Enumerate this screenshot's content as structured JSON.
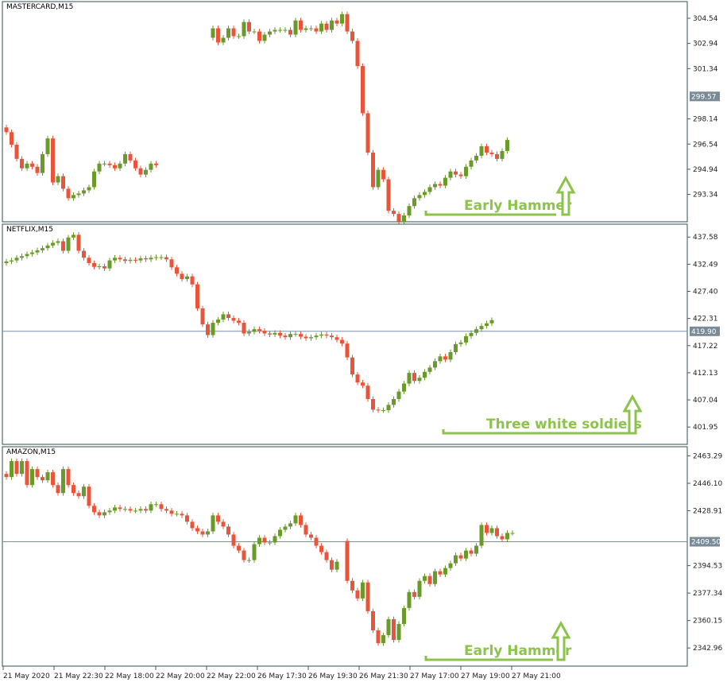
{
  "colors": {
    "bull": "#6a9a2a",
    "bear": "#e8553a",
    "annotation": "#8cc34a",
    "frame": "#2f4f4f",
    "price_line": "#7b8ea8",
    "price_box": "#7a8a96"
  },
  "time_axis": {
    "labels": [
      "21 May 2020",
      "21 May 22:30",
      "22 May 18:00",
      "22 May 20:00",
      "22 May 22:00",
      "26 May 17:30",
      "26 May 19:30",
      "26 May 21:30",
      "27 May 17:00",
      "27 May 19:00",
      "27 May 21:00"
    ]
  },
  "chart_data": [
    {
      "type": "candlestick",
      "title": "MASTERCARD,M15",
      "ylim": [
        291.6,
        305.6
      ],
      "yticks": [
        "304.54",
        "302.94",
        "301.34",
        "299.57",
        "298.14",
        "296.54",
        "294.94",
        "293.34"
      ],
      "current_price": "299.57",
      "show_price_line": false,
      "annotation": {
        "text": "Early Hammer"
      },
      "segments": [
        {
          "start": 0,
          "open": 297.6,
          "moves": [
            -0.3,
            -0.8,
            -0.9,
            -0.6,
            0.3,
            -0.2,
            -0.4,
            1.2,
            1.0,
            -2.8,
            0.4,
            -0.8,
            -0.6,
            0.2,
            0.1,
            0.2,
            0.2,
            1.0,
            0.5,
            0.0,
            -0.1,
            -0.2,
            0.3,
            0.6,
            -0.4,
            -0.5,
            -0.4,
            0.3,
            0.4,
            -0.1
          ]
        },
        {
          "start": 40,
          "open": 303.3,
          "moves": [
            0.6,
            -0.9,
            0.3,
            0.6,
            -0.5,
            0.0,
            0.9,
            -0.6,
            0.0,
            -0.6,
            0.4,
            0.2,
            0.1,
            0.0,
            0.0,
            -0.3,
            0.9,
            -0.6,
            0.1,
            0.0,
            -0.2,
            0.5,
            -0.4,
            0.6,
            -0.2,
            0.6,
            -1.1,
            -0.6,
            -1.6,
            -3.0,
            -2.5,
            -2.2,
            1.1,
            -0.6,
            -2.0,
            -0.2,
            -0.5,
            0.4,
            0.6,
            0.5,
            0.2,
            0.2,
            0.3,
            0.2,
            -0.1,
            0.5,
            0.4,
            -0.2,
            -0.1,
            0.6,
            0.4,
            0.3,
            0.6,
            -0.4,
            -0.1,
            -0.3,
            0.5,
            0.7
          ]
        }
      ]
    },
    {
      "type": "candlestick",
      "title": "NETFLIX,M15",
      "ylim": [
        398.7,
        440.0
      ],
      "yticks": [
        "437.58",
        "432.49",
        "427.40",
        "422.31",
        "419.90",
        "417.22",
        "412.13",
        "407.04",
        "401.95"
      ],
      "current_price": "419.90",
      "show_price_line": true,
      "annotation": {
        "text": "Three white soldiers"
      },
      "segments": [
        {
          "start": 0,
          "open": 432.7,
          "moves": [
            0.3,
            0.2,
            0.5,
            0.3,
            0.4,
            0.3,
            0.4,
            0.4,
            0.5,
            0.5,
            0.3,
            -1.8,
            2.5,
            0.5,
            -3.0,
            -1.3,
            -1.0,
            -0.7,
            0.1,
            -0.4,
            1.5,
            0.5,
            -0.3,
            -0.3,
            0.2,
            -0.1,
            0.4,
            -0.2,
            0.3,
            0.1,
            0.0,
            -0.4,
            -1.5,
            -1.2,
            -1.0,
            0.5,
            -1.5,
            -4.5,
            -3.0,
            -2.0,
            2.3,
            0.6,
            1.0,
            -0.7,
            -0.5,
            -0.4,
            -2.0,
            0.3,
            0.5,
            -0.3,
            -0.5,
            -0.2,
            0.3,
            -0.5,
            -0.3,
            0.6,
            0.0,
            -0.5,
            -0.3,
            0.2,
            0.3,
            0.2,
            -0.2,
            -0.3,
            -0.5,
            -0.7,
            -2.6,
            -3.2,
            -1.5,
            -0.6,
            -2.5,
            -2.0,
            -0.1,
            0.0,
            1.0,
            1.1,
            1.4,
            1.5,
            2.0,
            -1.5,
            0.6,
            1.1,
            0.8,
            1.2,
            0.9,
            -0.6,
            1.4,
            1.5,
            0.3,
            1.2,
            0.6,
            0.7,
            0.6,
            0.5,
            0.6
          ]
        }
      ]
    },
    {
      "type": "candlestick",
      "title": "AMAZON,M15",
      "ylim": [
        2331.6,
        2469.0
      ],
      "yticks": [
        "2463.29",
        "2446.10",
        "2428.91",
        "2409.50",
        "2394.53",
        "2377.34",
        "2360.15",
        "2342.96"
      ],
      "current_price": "2409.50",
      "show_price_line": true,
      "annotation": {
        "text": "Early Hammer"
      },
      "segments": [
        {
          "start": 0,
          "open": 2452,
          "moves": [
            -2,
            10,
            -8,
            8,
            -15,
            10,
            -5,
            -2,
            5,
            -8,
            -5,
            15,
            -10,
            -5,
            -2,
            6,
            -12,
            -4,
            -2,
            2,
            1,
            2,
            -1,
            0,
            -1,
            0,
            1,
            -1,
            4,
            0,
            -3,
            -1,
            -2,
            0,
            -1,
            -4,
            -4,
            -2,
            -2,
            2,
            10,
            -4,
            -3,
            -5,
            -7,
            -3,
            -6,
            0,
            10,
            4,
            -3,
            0,
            4,
            4,
            2,
            2,
            5,
            -6,
            -6,
            -2,
            -5,
            -4,
            -5,
            -6,
            5
          ]
        },
        {
          "start": 66,
          "open": 2410,
          "moves": [
            -25,
            -6,
            -5,
            10,
            -18,
            -12,
            -8,
            5,
            10,
            -13,
            10,
            10,
            10,
            -3,
            10,
            3,
            -5,
            8,
            -2,
            4,
            3,
            5,
            -2,
            5,
            -2,
            5,
            13,
            -5,
            3,
            -5,
            -2,
            4,
            0
          ]
        }
      ]
    }
  ]
}
